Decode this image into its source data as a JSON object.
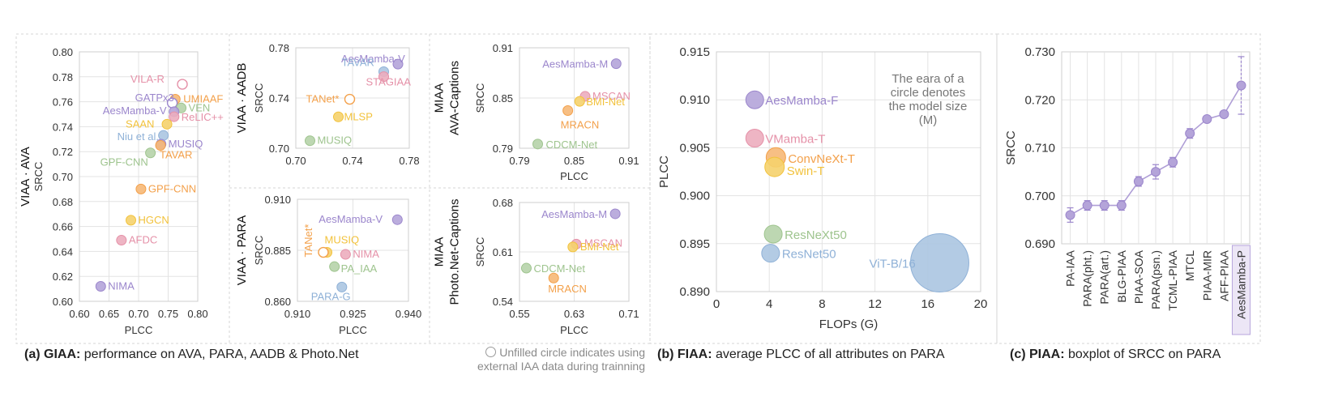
{
  "captions": {
    "a_bold": "(a) GIAA:",
    "a_text": " performance on AVA, PARA, AADB & Photo.Net",
    "b_bold": "(b)  FIAA:",
    "b_text": " average PLCC of all attributes on PARA",
    "c_bold": "(c) PIAA:",
    "c_text": " boxplot of SRCC on PARA",
    "note_line1": "Unfilled circle indicates using",
    "note_line2": "external IAA data during trainning"
  },
  "colors": {
    "purple": "#9b86cc",
    "pink": "#e591a8",
    "orange": "#f3a04a",
    "yellow": "#f2c23c",
    "green": "#9ec48e",
    "blue": "#8fb1d7",
    "gray": "#aeb5a4",
    "grid": "#e3e3e3",
    "frame": "#cfcfcf"
  },
  "chart_data": [
    {
      "id": "ava",
      "type": "scatter",
      "title_lines": [
        "VIAA · AVA"
      ],
      "xlabel": "PLCC",
      "ylabel": "SRCC",
      "xlim": [
        0.6,
        0.8
      ],
      "ylim": [
        0.6,
        0.8
      ],
      "xticks": [
        "0.60",
        "0.65",
        "0.70",
        "0.75",
        "0.80"
      ],
      "yticks": [
        "0.60",
        "0.62",
        "0.64",
        "0.66",
        "0.68",
        "0.70",
        "0.72",
        "0.74",
        "0.76",
        "0.78",
        "0.80"
      ],
      "points": [
        {
          "label": "VILA-R",
          "x": 0.774,
          "y": 0.774,
          "color": "pink",
          "hollow": true
        },
        {
          "label": "UMIAAF",
          "x": 0.762,
          "y": 0.762,
          "color": "orange"
        },
        {
          "label": "GATPx3",
          "x": 0.757,
          "y": 0.759,
          "color": "purple",
          "hollow": true
        },
        {
          "label": "VEN",
          "x": 0.772,
          "y": 0.755,
          "color": "green"
        },
        {
          "label": "AesMamba-V",
          "x": 0.76,
          "y": 0.752,
          "color": "purple"
        },
        {
          "label": "ReLIC++",
          "x": 0.76,
          "y": 0.748,
          "color": "pink"
        },
        {
          "label": "SAAN",
          "x": 0.748,
          "y": 0.742,
          "color": "yellow"
        },
        {
          "label": "Niu et al.",
          "x": 0.742,
          "y": 0.733,
          "color": "blue"
        },
        {
          "label": "MUSIQ",
          "x": 0.738,
          "y": 0.726,
          "color": "purple"
        },
        {
          "label": "TAVAR",
          "x": 0.737,
          "y": 0.725,
          "color": "orange"
        },
        {
          "label": "GPF-CNN",
          "x": 0.72,
          "y": 0.719,
          "color": "green"
        },
        {
          "label": "GPF-CNN",
          "x": 0.704,
          "y": 0.69,
          "color": "orange"
        },
        {
          "label": "HGCN",
          "x": 0.687,
          "y": 0.665,
          "color": "yellow"
        },
        {
          "label": "AFDC",
          "x": 0.671,
          "y": 0.649,
          "color": "pink"
        },
        {
          "label": "NIMA",
          "x": 0.636,
          "y": 0.612,
          "color": "purple"
        }
      ]
    },
    {
      "id": "aadb",
      "type": "scatter",
      "title_lines": [
        "VIAA · AADB"
      ],
      "xlabel": "",
      "ylabel": "SRCC",
      "xlim": [
        0.7,
        0.78
      ],
      "ylim": [
        0.7,
        0.78
      ],
      "xticks": [
        "0.70",
        "0.74",
        "0.78"
      ],
      "yticks": [
        "0.70",
        "0.74",
        "0.78"
      ],
      "points": [
        {
          "label": "AesMamba-V",
          "x": 0.772,
          "y": 0.767,
          "color": "purple"
        },
        {
          "label": "TAVAR",
          "x": 0.762,
          "y": 0.761,
          "color": "blue"
        },
        {
          "label": "STAGIAA",
          "x": 0.762,
          "y": 0.757,
          "color": "pink"
        },
        {
          "label": "TANet*",
          "x": 0.738,
          "y": 0.739,
          "color": "orange",
          "hollow": true
        },
        {
          "label": "MLSP",
          "x": 0.73,
          "y": 0.725,
          "color": "yellow"
        },
        {
          "label": "MUSIQ",
          "x": 0.71,
          "y": 0.706,
          "color": "green"
        }
      ]
    },
    {
      "id": "para",
      "type": "scatter",
      "title_lines": [
        "VIAA · PARA"
      ],
      "xlabel": "PLCC",
      "ylabel": "SRCC",
      "xlim": [
        0.91,
        0.94
      ],
      "ylim": [
        0.86,
        0.91
      ],
      "xticks": [
        "0.910",
        "0.925",
        "0.940"
      ],
      "yticks": [
        "0.860",
        "0.885",
        "0.910"
      ],
      "points": [
        {
          "label": "AesMamba-V",
          "x": 0.937,
          "y": 0.9,
          "color": "purple"
        },
        {
          "label": "MUSIQ",
          "x": 0.918,
          "y": 0.884,
          "color": "yellow"
        },
        {
          "label": "TANet*",
          "x": 0.917,
          "y": 0.884,
          "color": "orange",
          "hollow": true
        },
        {
          "label": "NIMA",
          "x": 0.923,
          "y": 0.883,
          "color": "pink"
        },
        {
          "label": "PA_IAA",
          "x": 0.92,
          "y": 0.877,
          "color": "green"
        },
        {
          "label": "PARA-G",
          "x": 0.922,
          "y": 0.867,
          "color": "blue"
        }
      ]
    },
    {
      "id": "ava-cap",
      "type": "scatter",
      "title_lines": [
        "MIAA",
        "AVA-Captions"
      ],
      "xlabel": "PLCC",
      "ylabel": "SRCC",
      "xlim": [
        0.79,
        0.91
      ],
      "ylim": [
        0.79,
        0.91
      ],
      "xticks": [
        "0.79",
        "0.85",
        "0.91"
      ],
      "yticks": [
        "0.79",
        "0.85",
        "0.91"
      ],
      "points": [
        {
          "label": "AesMamba-M",
          "x": 0.896,
          "y": 0.891,
          "color": "purple"
        },
        {
          "label": "MSCAN",
          "x": 0.862,
          "y": 0.852,
          "color": "pink"
        },
        {
          "label": "BMI-Net",
          "x": 0.856,
          "y": 0.846,
          "color": "yellow"
        },
        {
          "label": "MRACN",
          "x": 0.843,
          "y": 0.835,
          "color": "orange"
        },
        {
          "label": "CDCM-Net",
          "x": 0.81,
          "y": 0.795,
          "color": "green"
        }
      ]
    },
    {
      "id": "photo-cap",
      "type": "scatter",
      "title_lines": [
        "MIAA",
        "Photo.Net-Captions"
      ],
      "xlabel": "PLCC",
      "ylabel": "SRCC",
      "xlim": [
        0.55,
        0.71
      ],
      "ylim": [
        0.54,
        0.68
      ],
      "xticks": [
        "0.55",
        "0.63",
        "0.71"
      ],
      "yticks": [
        "0.54",
        "0.61",
        "0.68"
      ],
      "points": [
        {
          "label": "AesMamba-M",
          "x": 0.69,
          "y": 0.664,
          "color": "purple"
        },
        {
          "label": "MSCAN",
          "x": 0.633,
          "y": 0.621,
          "color": "pink"
        },
        {
          "label": "BMI-Net",
          "x": 0.628,
          "y": 0.617,
          "color": "yellow"
        },
        {
          "label": "CDCM-Net",
          "x": 0.56,
          "y": 0.587,
          "color": "green"
        },
        {
          "label": "MRACN",
          "x": 0.6,
          "y": 0.573,
          "color": "orange"
        }
      ]
    },
    {
      "id": "fiaa",
      "type": "scatter",
      "title_lines": [],
      "xlabel": "FLOPs (G)",
      "ylabel": "PLCC",
      "xlim": [
        0,
        20
      ],
      "ylim": [
        0.89,
        0.915
      ],
      "xticks": [
        "0",
        "4",
        "8",
        "12",
        "16",
        "20"
      ],
      "yticks": [
        "0.890",
        "0.895",
        "0.900",
        "0.905",
        "0.910",
        "0.915"
      ],
      "annotation_lines": [
        "The eara of a",
        "circle denotes",
        "the model size",
        "(M)"
      ],
      "points": [
        {
          "label": "AesMamba-F",
          "x": 2.9,
          "y": 0.91,
          "color": "purple",
          "size": 11
        },
        {
          "label": "VMamba-T",
          "x": 2.9,
          "y": 0.906,
          "color": "pink",
          "size": 11
        },
        {
          "label": "ConvNeXt-T",
          "x": 4.5,
          "y": 0.904,
          "color": "orange",
          "size": 12
        },
        {
          "label": "Swin-T",
          "x": 4.4,
          "y": 0.903,
          "color": "yellow",
          "size": 12
        },
        {
          "label": "ResNeXt50",
          "x": 4.3,
          "y": 0.896,
          "color": "green",
          "size": 11
        },
        {
          "label": "ResNet50",
          "x": 4.1,
          "y": 0.894,
          "color": "blue",
          "size": 11
        },
        {
          "label": "ViT-B/16",
          "x": 16.9,
          "y": 0.893,
          "color": "blue",
          "size": 36
        }
      ]
    },
    {
      "id": "piaa",
      "type": "line",
      "title_lines": [],
      "xlabel": "",
      "ylabel": "SRCC",
      "ylim": [
        0.69,
        0.73
      ],
      "yticks": [
        "0.690",
        "0.700",
        "0.710",
        "0.720",
        "0.730"
      ],
      "categories": [
        "PA-IAA",
        "PARA(pht.)",
        "PARA(art.)",
        "BLG-PIAA",
        "PIAA-SOA",
        "PARA(psn.)",
        "TCML-PIAA",
        "MTCL",
        "PIAA-MIR",
        "AFF-PIAA",
        "AesMamba-P"
      ],
      "values": [
        0.696,
        0.698,
        0.698,
        0.698,
        0.703,
        0.705,
        0.707,
        0.713,
        0.716,
        0.717,
        0.723
      ],
      "errors": [
        0.0015,
        0.001,
        0.001,
        0.001,
        0.001,
        0.0015,
        0.001,
        0.001,
        0.0005,
        0.0005,
        0.006
      ],
      "highlight": "AesMamba-P"
    }
  ]
}
